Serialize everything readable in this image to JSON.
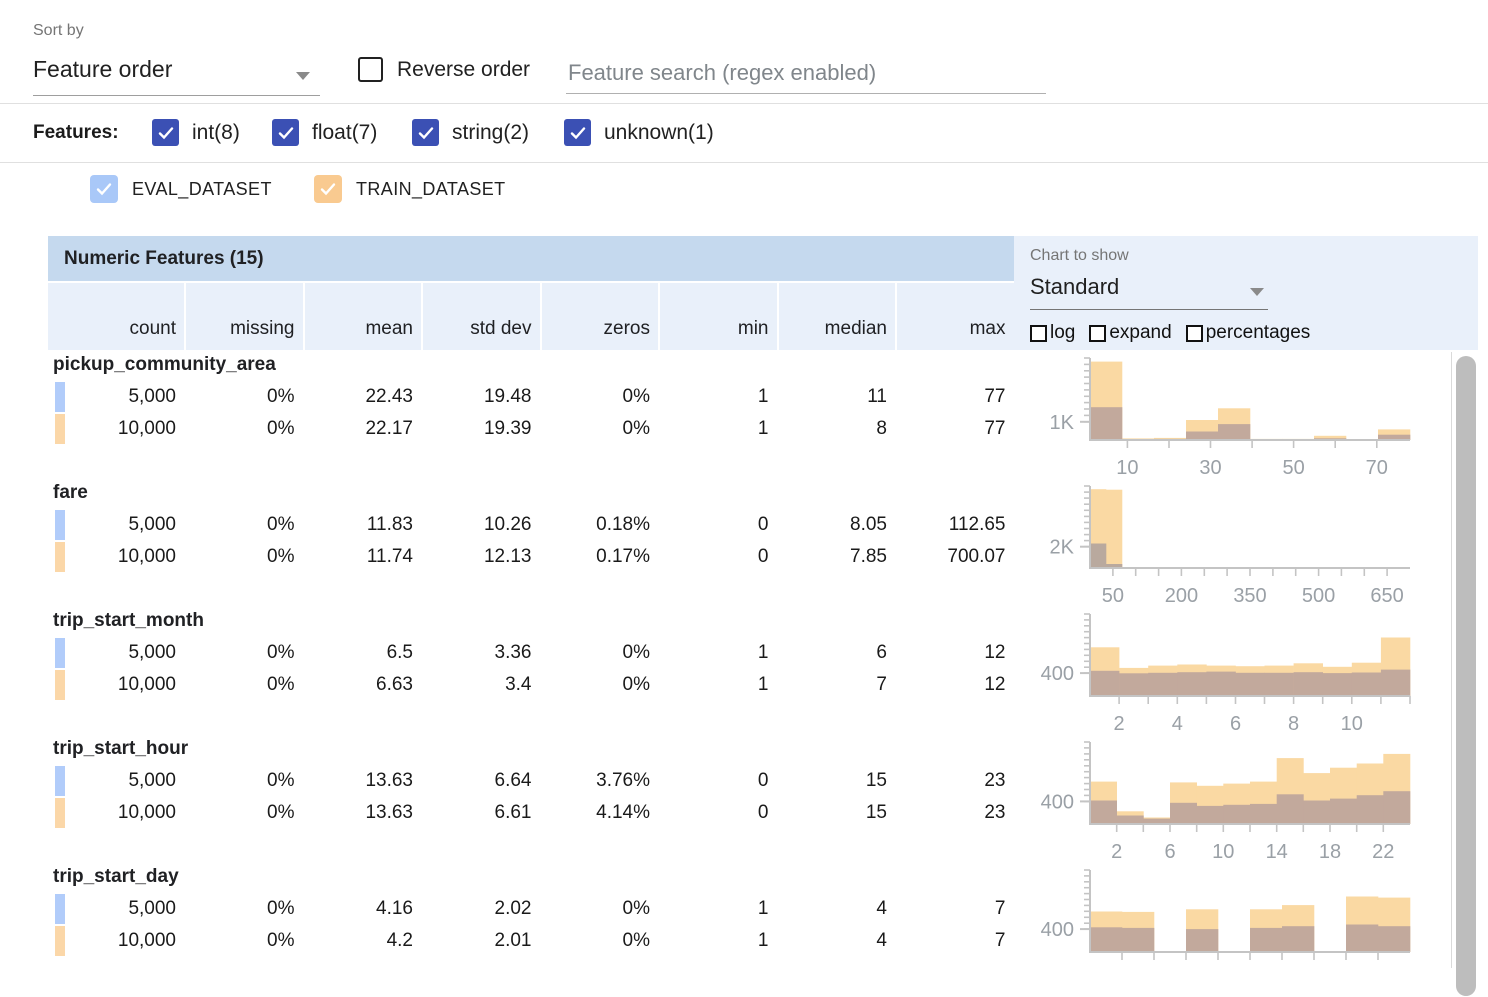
{
  "toolbar": {
    "sort_by_label": "Sort by",
    "sort_value": "Feature order",
    "reverse_label": "Reverse order",
    "search_placeholder": "Feature search (regex enabled)"
  },
  "filters": {
    "label": "Features:",
    "accent_color": "#3b50b4",
    "items": [
      {
        "label": "int(8)",
        "checked": true
      },
      {
        "label": "float(7)",
        "checked": true
      },
      {
        "label": "string(2)",
        "checked": true
      },
      {
        "label": "unknown(1)",
        "checked": true
      }
    ]
  },
  "datasets": [
    {
      "name": "EVAL_DATASET",
      "checkbox_color": "#a9c8f8",
      "swatch_color": "#b1ccfa",
      "checked": true
    },
    {
      "name": "TRAIN_DATASET",
      "checkbox_color": "#f9ca90",
      "swatch_color": "#fbd7a8",
      "checked": true
    }
  ],
  "chart_panel": {
    "label": "Chart to show",
    "value": "Standard",
    "options": [
      {
        "label": "log",
        "checked": false
      },
      {
        "label": "expand",
        "checked": false
      },
      {
        "label": "percentages",
        "checked": false
      }
    ]
  },
  "table": {
    "title": "Numeric Features (15)",
    "columns": [
      "count",
      "missing",
      "mean",
      "std dev",
      "zeros",
      "min",
      "median",
      "max"
    ],
    "features": [
      {
        "name": "pickup_community_area",
        "rows": [
          {
            "dataset": "EVAL_DATASET",
            "values": [
              "5,000",
              "0%",
              "22.43",
              "19.48",
              "0%",
              "1",
              "11",
              "77"
            ]
          },
          {
            "dataset": "TRAIN_DATASET",
            "values": [
              "10,000",
              "0%",
              "22.17",
              "19.39",
              "0%",
              "1",
              "8",
              "77"
            ]
          }
        ]
      },
      {
        "name": "fare",
        "rows": [
          {
            "dataset": "EVAL_DATASET",
            "values": [
              "5,000",
              "0%",
              "11.83",
              "10.26",
              "0.18%",
              "0",
              "8.05",
              "112.65"
            ]
          },
          {
            "dataset": "TRAIN_DATASET",
            "values": [
              "10,000",
              "0%",
              "11.74",
              "12.13",
              "0.17%",
              "0",
              "7.85",
              "700.07"
            ]
          }
        ]
      },
      {
        "name": "trip_start_month",
        "rows": [
          {
            "dataset": "EVAL_DATASET",
            "values": [
              "5,000",
              "0%",
              "6.5",
              "3.36",
              "0%",
              "1",
              "6",
              "12"
            ]
          },
          {
            "dataset": "TRAIN_DATASET",
            "values": [
              "10,000",
              "0%",
              "6.63",
              "3.4",
              "0%",
              "1",
              "7",
              "12"
            ]
          }
        ]
      },
      {
        "name": "trip_start_hour",
        "rows": [
          {
            "dataset": "EVAL_DATASET",
            "values": [
              "5,000",
              "0%",
              "13.63",
              "6.64",
              "3.76%",
              "0",
              "15",
              "23"
            ]
          },
          {
            "dataset": "TRAIN_DATASET",
            "values": [
              "10,000",
              "0%",
              "13.63",
              "6.61",
              "4.14%",
              "0",
              "15",
              "23"
            ]
          }
        ]
      },
      {
        "name": "trip_start_day",
        "rows": [
          {
            "dataset": "EVAL_DATASET",
            "values": [
              "5,000",
              "0%",
              "4.16",
              "2.02",
              "0%",
              "1",
              "4",
              "7"
            ]
          },
          {
            "dataset": "TRAIN_DATASET",
            "values": [
              "10,000",
              "0%",
              "4.2",
              "2.01",
              "0%",
              "1",
              "4",
              "7"
            ]
          }
        ]
      }
    ]
  },
  "chart_data": [
    {
      "feature": "pickup_community_area",
      "type": "bar",
      "x_range": [
        1,
        78
      ],
      "y_max": 4500,
      "y_tick": {
        "label": "1K",
        "value": 1000
      },
      "x_tick_labels": [
        {
          "label": "10",
          "value": 10
        },
        {
          "label": "30",
          "value": 30
        },
        {
          "label": "50",
          "value": 50
        },
        {
          "label": "70",
          "value": 70
        }
      ],
      "x_minor_ticks": [
        10,
        20,
        30,
        40,
        50,
        60,
        70
      ],
      "series": [
        {
          "name": "TRAIN_DATASET",
          "color": "#fad9a3",
          "values": [
            4300,
            90,
            115,
            1100,
            1740,
            60,
            60,
            230,
            40,
            580
          ]
        },
        {
          "name": "EVAL_DATASET_overlap",
          "color": "#c2a99c",
          "values": [
            1800,
            45,
            60,
            465,
            870,
            25,
            25,
            95,
            15,
            290
          ]
        }
      ]
    },
    {
      "feature": "fare",
      "type": "bar",
      "x_range": [
        0,
        700
      ],
      "y_max": 7700,
      "y_tick": {
        "label": "2K",
        "value": 2000
      },
      "x_tick_labels": [
        {
          "label": "50",
          "value": 50
        },
        {
          "label": "200",
          "value": 200
        },
        {
          "label": "350",
          "value": 350
        },
        {
          "label": "500",
          "value": 500
        },
        {
          "label": "650",
          "value": 650
        }
      ],
      "x_minor_ticks": [
        50,
        100,
        150,
        200,
        250,
        300,
        350,
        400,
        450,
        500,
        550,
        600,
        650
      ],
      "series": [
        {
          "name": "TRAIN_DATASET",
          "color": "#fad9a3",
          "values": [
            7400,
            7350,
            40,
            20,
            15,
            10,
            8,
            6,
            5,
            4,
            3,
            3,
            2,
            2,
            2,
            1,
            1,
            1,
            1,
            1
          ]
        },
        {
          "name": "EVAL_DATASET_overlap",
          "color": "#b9a99e",
          "values": [
            2300,
            380,
            60,
            10,
            5,
            4,
            3,
            2,
            2,
            1,
            1,
            1,
            0,
            0,
            0,
            0,
            0,
            0,
            0,
            0
          ]
        }
      ]
    },
    {
      "feature": "trip_start_month",
      "type": "bar",
      "x_range": [
        1,
        12
      ],
      "y_max": 1430,
      "y_tick": {
        "label": "400",
        "value": 400
      },
      "x_tick_labels": [
        {
          "label": "2",
          "value": 2
        },
        {
          "label": "4",
          "value": 4
        },
        {
          "label": "6",
          "value": 6
        },
        {
          "label": "8",
          "value": 8
        },
        {
          "label": "10",
          "value": 10
        }
      ],
      "x_minor_ticks": [
        2,
        3,
        4,
        5,
        6,
        7,
        8,
        9,
        10,
        11,
        12
      ],
      "series": [
        {
          "name": "TRAIN_DATASET",
          "color": "#fad9a3",
          "values": [
            850,
            490,
            530,
            550,
            530,
            520,
            530,
            570,
            510,
            580,
            1020
          ]
        },
        {
          "name": "EVAL_DATASET_overlap",
          "color": "#c2a99c",
          "values": [
            440,
            395,
            405,
            415,
            425,
            405,
            405,
            415,
            400,
            410,
            460
          ]
        }
      ]
    },
    {
      "feature": "trip_start_hour",
      "type": "bar",
      "x_range": [
        0,
        24
      ],
      "y_max": 1450,
      "y_tick": {
        "label": "400",
        "value": 400
      },
      "x_tick_labels": [
        {
          "label": "2",
          "value": 2
        },
        {
          "label": "6",
          "value": 6
        },
        {
          "label": "10",
          "value": 10
        },
        {
          "label": "14",
          "value": 14
        },
        {
          "label": "18",
          "value": 18
        },
        {
          "label": "22",
          "value": 22
        }
      ],
      "x_minor_ticks": [
        2,
        4,
        6,
        8,
        10,
        12,
        14,
        16,
        18,
        20,
        22
      ],
      "series": [
        {
          "name": "TRAIN_DATASET",
          "color": "#fad9a3",
          "values": [
            750,
            225,
            115,
            735,
            675,
            715,
            750,
            1165,
            900,
            995,
            1070,
            1240
          ]
        },
        {
          "name": "EVAL_DATASET_overlap",
          "color": "#c2a99c",
          "values": [
            415,
            150,
            95,
            375,
            320,
            340,
            355,
            525,
            415,
            450,
            510,
            580
          ]
        }
      ]
    },
    {
      "feature": "trip_start_day",
      "type": "bar",
      "x_range": [
        1,
        7
      ],
      "y_max": 1430,
      "y_tick": {
        "label": "400",
        "value": 400
      },
      "x_tick_labels": [],
      "x_minor_ticks": [
        1.6,
        2.2,
        2.8,
        3.4,
        4.0,
        4.6,
        5.2,
        5.8,
        6.4
      ],
      "series": [
        {
          "name": "TRAIN_DATASET",
          "color": "#fad9a3",
          "values": [
            707,
            700,
            0,
            744,
            0,
            744,
            818,
            0,
            967,
            948
          ]
        },
        {
          "name": "EVAL_DATASET_overlap",
          "color": "#c2a99c",
          "values": [
            430,
            420,
            0,
            400,
            0,
            420,
            450,
            0,
            480,
            450
          ]
        }
      ]
    }
  ]
}
